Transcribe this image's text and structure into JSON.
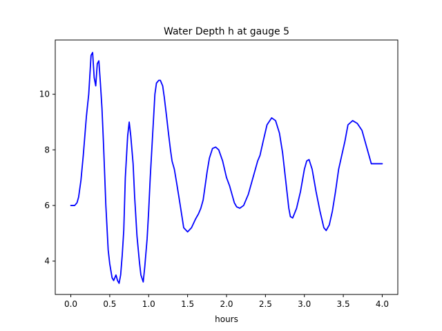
{
  "chart_data": {
    "type": "line",
    "title": "Water Depth h at gauge 5",
    "xlabel": "hours",
    "ylabel": "",
    "xlim": [
      -0.2,
      4.2
    ],
    "ylim": [
      2.8,
      11.95
    ],
    "xticks": [
      0.0,
      0.5,
      1.0,
      1.5,
      2.0,
      2.5,
      3.0,
      3.5,
      4.0
    ],
    "xtick_labels": [
      "0.0",
      "0.5",
      "1.0",
      "1.5",
      "2.0",
      "2.5",
      "3.0",
      "3.5",
      "4.0"
    ],
    "yticks": [
      4,
      6,
      8,
      10
    ],
    "ytick_labels": [
      "4",
      "6",
      "8",
      "10"
    ],
    "grid": false,
    "colors": {
      "series": "#0000ff",
      "axes": "#000000",
      "background": "#ffffff"
    },
    "series": [
      {
        "name": "",
        "x": [
          0.0,
          0.05,
          0.08,
          0.1,
          0.13,
          0.16,
          0.2,
          0.23,
          0.26,
          0.28,
          0.3,
          0.32,
          0.34,
          0.36,
          0.38,
          0.4,
          0.42,
          0.45,
          0.48,
          0.5,
          0.53,
          0.55,
          0.58,
          0.6,
          0.62,
          0.64,
          0.66,
          0.68,
          0.7,
          0.73,
          0.75,
          0.77,
          0.8,
          0.82,
          0.85,
          0.88,
          0.9,
          0.93,
          0.95,
          0.98,
          1.0,
          1.02,
          1.05,
          1.08,
          1.1,
          1.13,
          1.15,
          1.18,
          1.2,
          1.23,
          1.25,
          1.28,
          1.3,
          1.33,
          1.36,
          1.4,
          1.45,
          1.5,
          1.55,
          1.6,
          1.64,
          1.67,
          1.7,
          1.72,
          1.75,
          1.78,
          1.82,
          1.86,
          1.9,
          1.95,
          2.0,
          2.04,
          2.07,
          2.1,
          2.13,
          2.17,
          2.22,
          2.28,
          2.33,
          2.38,
          2.4,
          2.43,
          2.47,
          2.52,
          2.58,
          2.63,
          2.68,
          2.72,
          2.76,
          2.8,
          2.82,
          2.85,
          2.9,
          2.95,
          3.0,
          3.03,
          3.06,
          3.1,
          3.15,
          3.2,
          3.25,
          3.28,
          3.32,
          3.36,
          3.4,
          3.44,
          3.48,
          3.52,
          3.56,
          3.62,
          3.68,
          3.74,
          3.78,
          3.82,
          3.86,
          3.9,
          3.95,
          4.0
        ],
        "values": [
          6.0,
          6.0,
          6.1,
          6.3,
          6.9,
          7.8,
          9.2,
          10.0,
          11.4,
          11.5,
          10.6,
          10.3,
          11.1,
          11.2,
          10.4,
          9.5,
          8.2,
          6.0,
          4.4,
          3.9,
          3.4,
          3.3,
          3.5,
          3.3,
          3.2,
          3.5,
          4.2,
          5.1,
          7.0,
          8.5,
          9.0,
          8.5,
          7.5,
          6.3,
          4.9,
          4.0,
          3.5,
          3.25,
          3.8,
          4.8,
          5.8,
          7.0,
          8.5,
          10.0,
          10.4,
          10.5,
          10.5,
          10.3,
          9.9,
          9.2,
          8.7,
          8.0,
          7.6,
          7.3,
          6.8,
          6.1,
          5.2,
          5.05,
          5.2,
          5.5,
          5.7,
          5.9,
          6.2,
          6.6,
          7.2,
          7.7,
          8.05,
          8.1,
          8.0,
          7.6,
          7.0,
          6.7,
          6.4,
          6.1,
          5.95,
          5.9,
          6.0,
          6.4,
          6.9,
          7.4,
          7.6,
          7.8,
          8.3,
          8.9,
          9.15,
          9.05,
          8.6,
          7.9,
          6.9,
          5.9,
          5.6,
          5.55,
          5.9,
          6.5,
          7.3,
          7.6,
          7.65,
          7.3,
          6.5,
          5.8,
          5.2,
          5.1,
          5.3,
          5.8,
          6.5,
          7.3,
          7.8,
          8.3,
          8.9,
          9.05,
          8.95,
          8.7,
          8.3,
          7.9,
          7.5,
          7.5,
          7.5,
          7.5
        ]
      }
    ]
  }
}
